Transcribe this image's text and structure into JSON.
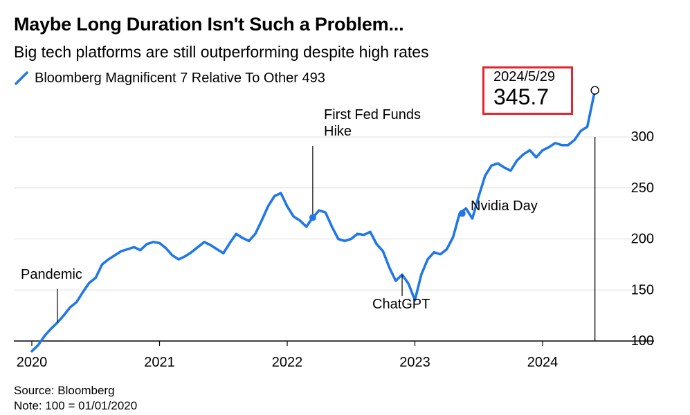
{
  "header": {
    "title": "Maybe Long Duration Isn't Such a Problem...",
    "subtitle": "Big tech platforms are still outperforming despite high rates"
  },
  "legend": {
    "label": "Bloomberg Magnificent 7 Relative To Other 493",
    "color": "#1f77e8"
  },
  "callout": {
    "date": "2024/5/29",
    "value": "345.7",
    "border_color": "#e3262d"
  },
  "footer": {
    "source": "Source: Bloomberg",
    "note": "Note: 100 = 01/01/2020"
  },
  "chart_data": {
    "type": "line",
    "title": "Maybe Long Duration Isn't Such a Problem...",
    "subtitle": "Big tech platforms are still outperforming despite high rates",
    "xlabel": "",
    "ylabel": "",
    "xlim": [
      2020.0,
      2025.0
    ],
    "ylim": [
      88,
      300
    ],
    "x_ticks": [
      {
        "value": 2020,
        "label": "2020"
      },
      {
        "value": 2021,
        "label": "2021"
      },
      {
        "value": 2022,
        "label": "2022"
      },
      {
        "value": 2023,
        "label": "2023"
      },
      {
        "value": 2024,
        "label": "2024"
      }
    ],
    "y_ticks": [
      {
        "value": 100,
        "label": "100"
      },
      {
        "value": 150,
        "label": "150"
      },
      {
        "value": 200,
        "label": "200"
      },
      {
        "value": 250,
        "label": "250"
      },
      {
        "value": 300,
        "label": "300"
      }
    ],
    "grid": "horizontal",
    "legend_position": "top-left",
    "series": [
      {
        "name": "Bloomberg Magnificent 7 Relative To Other 493",
        "color": "#1f77e8",
        "x": [
          2020.0,
          2020.05,
          2020.1,
          2020.15,
          2020.2,
          2020.25,
          2020.3,
          2020.35,
          2020.4,
          2020.45,
          2020.5,
          2020.55,
          2020.6,
          2020.65,
          2020.7,
          2020.75,
          2020.8,
          2020.85,
          2020.9,
          2020.95,
          2021.0,
          2021.05,
          2021.1,
          2021.15,
          2021.2,
          2021.25,
          2021.3,
          2021.35,
          2021.4,
          2021.45,
          2021.5,
          2021.55,
          2021.6,
          2021.65,
          2021.7,
          2021.75,
          2021.8,
          2021.85,
          2021.9,
          2021.95,
          2022.0,
          2022.05,
          2022.1,
          2022.15,
          2022.2,
          2022.25,
          2022.3,
          2022.35,
          2022.4,
          2022.45,
          2022.5,
          2022.55,
          2022.6,
          2022.65,
          2022.7,
          2022.75,
          2022.8,
          2022.85,
          2022.9,
          2022.95,
          2023.0,
          2023.05,
          2023.1,
          2023.15,
          2023.2,
          2023.25,
          2023.3,
          2023.35,
          2023.4,
          2023.45,
          2023.5,
          2023.55,
          2023.6,
          2023.65,
          2023.7,
          2023.75,
          2023.8,
          2023.85,
          2023.9,
          2023.95,
          2024.0,
          2024.05,
          2024.1,
          2024.15,
          2024.2,
          2024.25,
          2024.3,
          2024.35,
          2024.41
        ],
        "values": [
          90,
          96,
          105,
          112,
          118,
          125,
          133,
          138,
          148,
          157,
          162,
          175,
          180,
          184,
          188,
          190,
          192,
          189,
          195,
          197,
          196,
          191,
          184,
          180,
          183,
          187,
          192,
          197,
          194,
          190,
          186,
          196,
          205,
          201,
          198,
          205,
          218,
          232,
          242,
          245,
          232,
          222,
          218,
          212,
          221,
          228,
          226,
          212,
          200,
          198,
          200,
          205,
          204,
          207,
          195,
          188,
          172,
          159,
          165,
          156,
          140,
          165,
          180,
          187,
          185,
          190,
          202,
          225,
          230,
          220,
          242,
          262,
          272,
          274,
          270,
          267,
          277,
          283,
          287,
          280,
          287,
          290,
          294,
          292,
          292,
          297,
          306,
          310,
          345.7
        ]
      }
    ],
    "annotations": [
      {
        "label": "Pandemic",
        "x": 2020.2
      },
      {
        "label": "First Fed Funds Hike",
        "x": 2022.2
      },
      {
        "label": "ChatGPT",
        "x": 2022.9
      },
      {
        "label": "Nvidia Day",
        "x": 2023.37
      },
      {
        "label": "2024/5/29",
        "x": 2024.41,
        "value": 345.7
      }
    ]
  }
}
